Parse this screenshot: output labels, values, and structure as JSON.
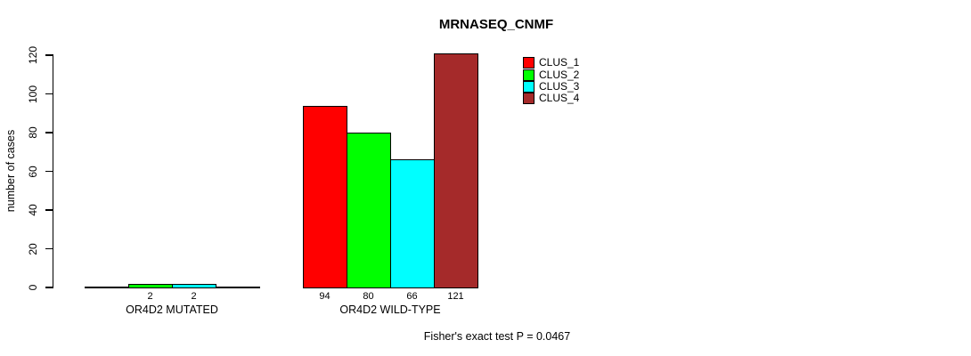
{
  "title": "MRNASEQ_CNMF",
  "y_axis_label": "number of cases",
  "footer_note": "Fisher's exact test P = 0.0467",
  "legend": {
    "position": "top-right",
    "items": [
      {
        "label": "CLUS_1",
        "color": "#ff0000"
      },
      {
        "label": "CLUS_2",
        "color": "#00ff00"
      },
      {
        "label": "CLUS_3",
        "color": "#00ffff"
      },
      {
        "label": "CLUS_4",
        "color": "#a52a2a"
      }
    ]
  },
  "chart_data": {
    "type": "bar",
    "title": "MRNASEQ_CNMF",
    "xlabel": "",
    "ylabel": "number of cases",
    "categories": [
      "OR4D2 MUTATED",
      "OR4D2 WILD-TYPE"
    ],
    "series": [
      {
        "name": "CLUS_1",
        "color": "#ff0000",
        "values": [
          0,
          94
        ]
      },
      {
        "name": "CLUS_2",
        "color": "#00ff00",
        "values": [
          2,
          80
        ]
      },
      {
        "name": "CLUS_3",
        "color": "#00ffff",
        "values": [
          2,
          66
        ]
      },
      {
        "name": "CLUS_4",
        "color": "#a52a2a",
        "values": [
          0,
          121
        ]
      }
    ],
    "bar_value_labels": {
      "OR4D2 MUTATED": [
        "",
        "2",
        "2",
        ""
      ],
      "OR4D2 WILD-TYPE": [
        "94",
        "80",
        "66",
        "121"
      ]
    },
    "ylim": [
      0,
      120
    ],
    "yticks": [
      0,
      20,
      40,
      60,
      80,
      100,
      120
    ],
    "grid": false,
    "legend_position": "top-right",
    "annotation": "Fisher's exact test P = 0.0467"
  }
}
